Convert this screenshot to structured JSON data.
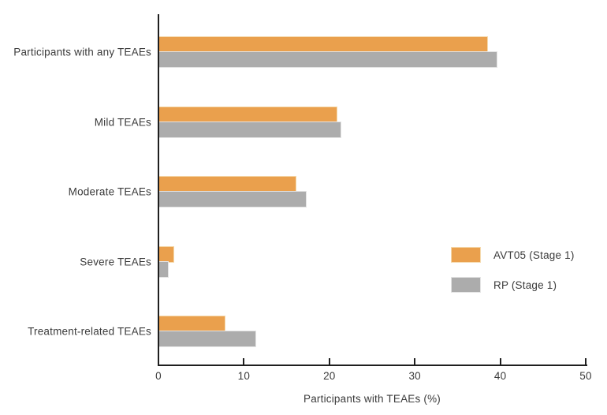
{
  "figure": {
    "background": "#ffffff",
    "axis_color": "#1f1f1f",
    "text_color": "#3b3b3b"
  },
  "chart_data": {
    "type": "bar",
    "orientation": "horizontal",
    "title": "",
    "categories": [
      "Participants with any TEAEs",
      "Mild TEAEs",
      "Moderate TEAEs",
      "Severe TEAEs",
      "Treatment-related TEAEs"
    ],
    "series": [
      {
        "name": "AVT05 (Stage 1)",
        "color": "#EAA04D",
        "edge_color": "#F5D9AC",
        "values": [
          38.4,
          20.8,
          16.0,
          1.7,
          7.7
        ]
      },
      {
        "name": "RP (Stage 1)",
        "color": "#ACACAC",
        "edge_color": "#E3E3E3",
        "values": [
          39.5,
          21.2,
          17.2,
          1.0,
          11.3
        ]
      }
    ],
    "xlabel": "Participants with TEAEs (%)",
    "xlim": [
      0,
      50
    ],
    "xticks": [
      0,
      10,
      20,
      30,
      40,
      50
    ],
    "grid": false,
    "legend_position": "right-middle"
  }
}
